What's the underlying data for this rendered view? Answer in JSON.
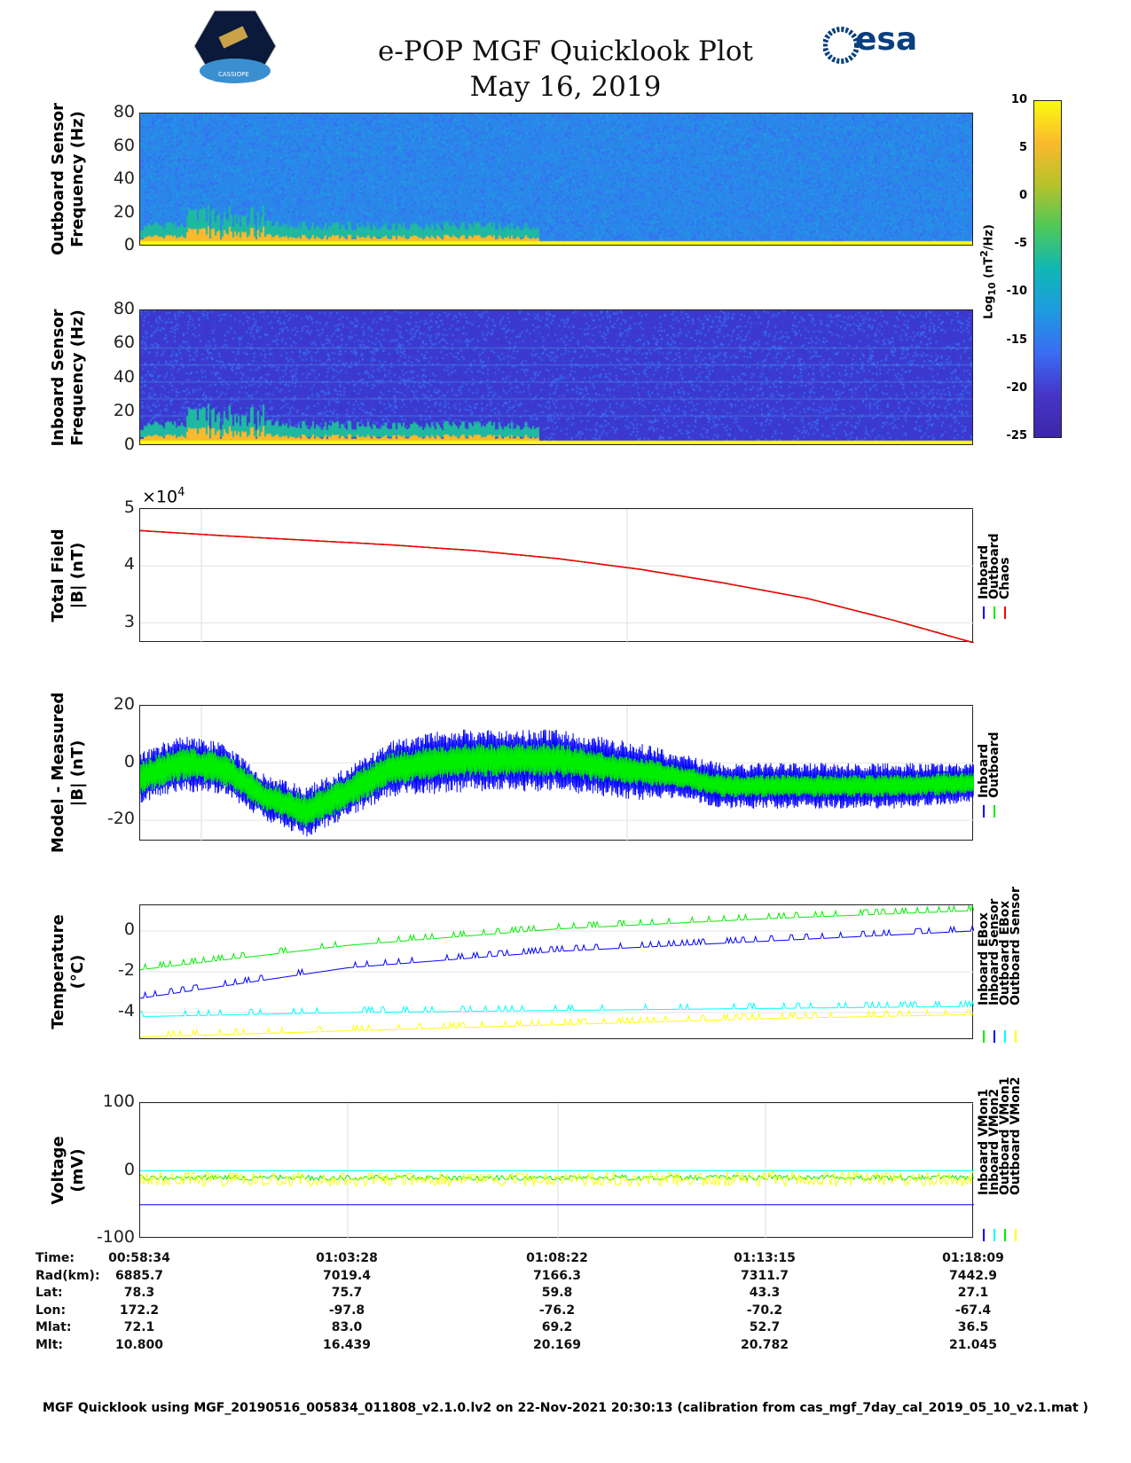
{
  "header": {
    "title": "e-POP MGF Quicklook Plot",
    "date": "May 16, 2019",
    "left_logo": "CASSIOPE",
    "right_logo": "esa"
  },
  "colors": {
    "inboard": "#0000ff",
    "outboard": "#00ee00",
    "chaos": "#ff0000",
    "cyan": "#00ffff",
    "yellow": "#ffff00"
  },
  "chart_data": [
    {
      "type": "heatmap",
      "ylabel": "Outboard Sensor\nFrequency (Hz)",
      "ylabel1": "Outboard Sensor",
      "ylabel2": "Frequency (Hz)",
      "yticks": [
        "80",
        "60",
        "40",
        "20",
        "0"
      ],
      "ylim": [
        0,
        80
      ]
    },
    {
      "type": "heatmap",
      "ylabel1": "Inboard Sensor",
      "ylabel2": "Frequency (Hz)",
      "yticks": [
        "80",
        "60",
        "40",
        "20",
        "0"
      ],
      "ylim": [
        0,
        80
      ]
    },
    {
      "type": "colorbar",
      "label": "Log10 (nT^2/Hz)",
      "label_main": "Log",
      "label_sub": "10",
      "label_rest": " (nT",
      "label_sup": "2",
      "label_end": "/Hz)",
      "ticks": [
        "10",
        "5",
        "0",
        "-5",
        "-10",
        "-15",
        "-20",
        "-25"
      ],
      "clim": [
        -25,
        10
      ]
    },
    {
      "type": "line",
      "ylabel1": "Total Field",
      "ylabel2": "|B| (nT)",
      "exponent": "×10",
      "exponent_pow": "4",
      "yticks": [
        "5",
        "4",
        "3"
      ],
      "ylim": [
        2.65,
        5
      ],
      "x": [
        0,
        0.1,
        0.2,
        0.3,
        0.4,
        0.5,
        0.6,
        0.7,
        0.8,
        0.9,
        1
      ],
      "series": [
        {
          "name": "Inboard",
          "values": [
            4.62,
            4.53,
            4.45,
            4.37,
            4.27,
            4.13,
            3.94,
            3.7,
            3.43,
            3.06,
            2.65
          ]
        },
        {
          "name": "Outboard",
          "values": [
            4.62,
            4.53,
            4.45,
            4.37,
            4.27,
            4.13,
            3.94,
            3.7,
            3.43,
            3.06,
            2.65
          ]
        },
        {
          "name": "Chaos",
          "values": [
            4.62,
            4.53,
            4.45,
            4.37,
            4.27,
            4.13,
            3.94,
            3.7,
            3.43,
            3.06,
            2.65
          ]
        }
      ],
      "legend": [
        "Inboard",
        "Outboard",
        "Chaos"
      ]
    },
    {
      "type": "line",
      "ylabel1": "Model - Measured",
      "ylabel2": "|B| (nT)",
      "yticks": [
        "20",
        "0",
        "-20"
      ],
      "ylim": [
        -27.4,
        20
      ],
      "x": [
        0,
        0.05,
        0.1,
        0.15,
        0.2,
        0.25,
        0.3,
        0.35,
        0.4,
        0.5,
        0.6,
        0.65,
        0.7,
        0.8,
        0.9,
        1
      ],
      "series": [
        {
          "name": "Inboard",
          "center": [
            -5,
            0,
            -2,
            -12,
            -17,
            -10,
            -2,
            0,
            1,
            1,
            -3,
            -5,
            -8,
            -8,
            -8,
            -7
          ],
          "amplitude": [
            9,
            10,
            9,
            8,
            9,
            9,
            10,
            11,
            11,
            11,
            10,
            8,
            8,
            8,
            8,
            7
          ]
        },
        {
          "name": "Outboard",
          "center": [
            -5,
            0,
            -2,
            -12,
            -17,
            -10,
            -2,
            0,
            1,
            1,
            -3,
            -5,
            -8,
            -8,
            -8,
            -7
          ],
          "amplitude": [
            6,
            6,
            6,
            5,
            6,
            6,
            6,
            6,
            6,
            6,
            5,
            4,
            4,
            4,
            4,
            4
          ]
        }
      ],
      "legend": [
        "Inboard",
        "Outboard"
      ]
    },
    {
      "type": "line",
      "ylabel1": "Temperature",
      "ylabel2": "(°C)",
      "yticks": [
        "0",
        "-2",
        "-4"
      ],
      "ylim": [
        -5.35,
        1.26
      ],
      "x": [
        0,
        0.25,
        0.5,
        0.75,
        1
      ],
      "series": [
        {
          "name": "Inboard EBox",
          "values": [
            -1.9,
            -0.7,
            0.1,
            0.6,
            1.0
          ]
        },
        {
          "name": "Inboard Sensor",
          "values": [
            -3.3,
            -1.8,
            -1.0,
            -0.5,
            0.0
          ]
        },
        {
          "name": "Outboard EBox",
          "values": [
            -4.2,
            -4.0,
            -3.9,
            -3.8,
            -3.7
          ]
        },
        {
          "name": "Outboard Sensor",
          "values": [
            -5.2,
            -4.9,
            -4.6,
            -4.3,
            -4.1
          ]
        }
      ],
      "legend": [
        "Inboard EBox",
        "Inboard Sensor",
        "Outboard EBox",
        "Outboard Sensor"
      ]
    },
    {
      "type": "line",
      "ylabel1": "Voltage",
      "ylabel2": "(mV)",
      "yticks": [
        "100",
        "0",
        "-100"
      ],
      "ylim": [
        -100,
        100
      ],
      "x": [
        0,
        1
      ],
      "series": [
        {
          "name": "Inboard VMon1",
          "values": [
            -50,
            -50
          ]
        },
        {
          "name": "Inboard VMon2",
          "values": [
            0,
            0
          ]
        },
        {
          "name": "Outboard VMon1",
          "values": [
            -10,
            -10
          ]
        },
        {
          "name": "Outboard VMon2",
          "values": [
            -12,
            -12
          ]
        }
      ],
      "legend": [
        "Inboard VMon1",
        "Inboard VMon2",
        "Outboard VMon1",
        "Outboard VMon2"
      ]
    }
  ],
  "table": {
    "labels": [
      "Time:",
      "Rad(km):",
      "Lat:",
      "Lon:",
      "Mlat:",
      "Mlt:"
    ],
    "columns": [
      [
        "00:58:34",
        "6885.7",
        "78.3",
        "172.2",
        "72.1",
        "10.800"
      ],
      [
        "01:03:28",
        "7019.4",
        "75.7",
        "-97.8",
        "83.0",
        "16.439"
      ],
      [
        "01:08:22",
        "7166.3",
        "59.8",
        "-76.2",
        "69.2",
        "20.169"
      ],
      [
        "01:13:15",
        "7311.7",
        "43.3",
        "-70.2",
        "52.7",
        "20.782"
      ],
      [
        "01:18:09",
        "7442.9",
        "27.1",
        "-67.4",
        "36.5",
        "21.045"
      ]
    ]
  },
  "footer": "MGF Quicklook using MGF_20190516_005834_011808_v2.1.0.lv2 on 22-Nov-2021 20:30:13 (calibration from cas_mgf_7day_cal_2019_05_10_v2.1.mat )"
}
